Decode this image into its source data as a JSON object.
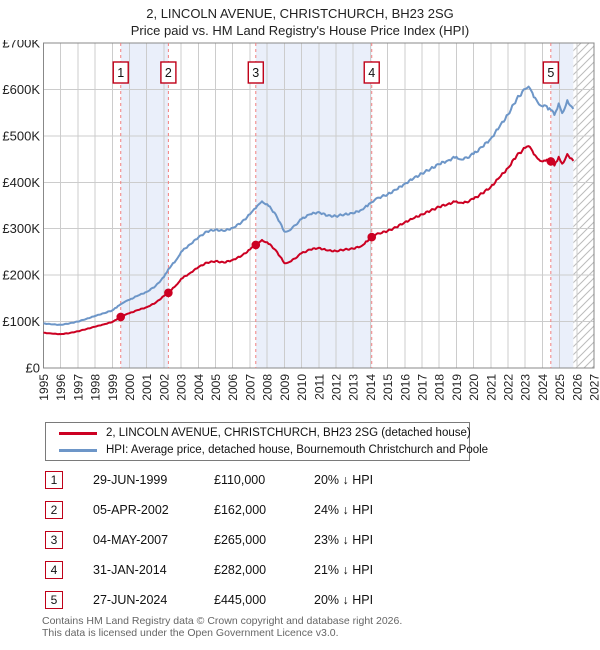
{
  "title": {
    "line1": "2, LINCOLN AVENUE, CHRISTCHURCH, BH23 2SG",
    "line2": "Price paid vs. HM Land Registry's House Price Index (HPI)"
  },
  "colors": {
    "price_line": "#cc0022",
    "hpi_line": "#6d96c8",
    "sale_dashed_line": "#f08080",
    "ownership_band": "#eaeffa",
    "gridline": "#cccccc",
    "frame": "#888888",
    "hatch": "#bbbbbb",
    "marker_box_border": "#c00018",
    "footer_text": "#666666"
  },
  "chart_data": {
    "type": "line",
    "title": "Price paid vs. HM Land Registry's House Price Index (HPI)",
    "xlabel": "",
    "ylabel": "",
    "x_range": [
      1995,
      2027
    ],
    "y_range": [
      0,
      700000
    ],
    "grid": true,
    "x_tick_labels": [
      "1995",
      "1996",
      "1997",
      "1998",
      "1999",
      "2000",
      "2001",
      "2002",
      "2003",
      "2004",
      "2005",
      "2006",
      "2007",
      "2008",
      "2009",
      "2010",
      "2011",
      "2012",
      "2013",
      "2014",
      "2015",
      "2016",
      "2017",
      "2018",
      "2019",
      "2020",
      "2021",
      "2022",
      "2023",
      "2024",
      "2025",
      "2026",
      "2027"
    ],
    "y_tick_labels": [
      "£0",
      "£100K",
      "£200K",
      "£300K",
      "£400K",
      "£500K",
      "£600K",
      "£700K"
    ],
    "y_tick_values": [
      0,
      100000,
      200000,
      300000,
      400000,
      500000,
      600000,
      700000
    ],
    "future_hatch_start": 2025.8,
    "ownership_bands": [
      [
        1999.49,
        2002.26
      ],
      [
        2007.34,
        2014.08
      ],
      [
        2024.49,
        2025.8
      ]
    ],
    "series": [
      {
        "name": "HPI: Average price, detached house, Bournemouth Christchurch and Poole",
        "color": "#6d96c8",
        "points": [
          [
            1995,
            96000
          ],
          [
            1995.5,
            94000
          ],
          [
            1996,
            93000
          ],
          [
            1996.5,
            96000
          ],
          [
            1997,
            100000
          ],
          [
            1997.5,
            106000
          ],
          [
            1998,
            112000
          ],
          [
            1998.5,
            118000
          ],
          [
            1999,
            124000
          ],
          [
            1999.49,
            137500
          ],
          [
            2000,
            147000
          ],
          [
            2000.5,
            156000
          ],
          [
            2001,
            164000
          ],
          [
            2001.5,
            176000
          ],
          [
            2002,
            196000
          ],
          [
            2002.26,
            213000
          ],
          [
            2002.7,
            232000
          ],
          [
            2003,
            250000
          ],
          [
            2003.5,
            266000
          ],
          [
            2004,
            281000
          ],
          [
            2004.5,
            294000
          ],
          [
            2005,
            298000
          ],
          [
            2005.5,
            295000
          ],
          [
            2006,
            302000
          ],
          [
            2006.5,
            313000
          ],
          [
            2007,
            331000
          ],
          [
            2007.34,
            344000
          ],
          [
            2007.7,
            359000
          ],
          [
            2008,
            353000
          ],
          [
            2008.5,
            331000
          ],
          [
            2009,
            294000
          ],
          [
            2009.4,
            299000
          ],
          [
            2010,
            321000
          ],
          [
            2010.5,
            331000
          ],
          [
            2011,
            336000
          ],
          [
            2011.5,
            328000
          ],
          [
            2012,
            327000
          ],
          [
            2012.5,
            331000
          ],
          [
            2013,
            333000
          ],
          [
            2013.5,
            341000
          ],
          [
            2014.08,
            357000
          ],
          [
            2014.5,
            367000
          ],
          [
            2015,
            374000
          ],
          [
            2015.5,
            384000
          ],
          [
            2016,
            397000
          ],
          [
            2016.5,
            408000
          ],
          [
            2017,
            419000
          ],
          [
            2017.5,
            429000
          ],
          [
            2018,
            439000
          ],
          [
            2018.5,
            447000
          ],
          [
            2019,
            455000
          ],
          [
            2019.4,
            449000
          ],
          [
            2020,
            461000
          ],
          [
            2020.5,
            476000
          ],
          [
            2021,
            494000
          ],
          [
            2021.5,
            519000
          ],
          [
            2022,
            546000
          ],
          [
            2022.5,
            579000
          ],
          [
            2023,
            601000
          ],
          [
            2023.2,
            606000
          ],
          [
            2023.5,
            583000
          ],
          [
            2023.8,
            568000
          ],
          [
            2024.1,
            566000
          ],
          [
            2024.49,
            556000
          ],
          [
            2024.7,
            545000
          ],
          [
            2024.95,
            570000
          ],
          [
            2025.15,
            549000
          ],
          [
            2025.45,
            577000
          ],
          [
            2025.6,
            566000
          ],
          [
            2025.8,
            558000
          ]
        ]
      },
      {
        "name": "2, LINCOLN AVENUE, CHRISTCHURCH, BH23 2SG (detached house)",
        "color": "#cc0022",
        "points": [
          [
            1995,
            76000
          ],
          [
            1995.5,
            74000
          ],
          [
            1996,
            73000
          ],
          [
            1996.5,
            75000
          ],
          [
            1997,
            79000
          ],
          [
            1997.5,
            84000
          ],
          [
            1998,
            89000
          ],
          [
            1998.5,
            94000
          ],
          [
            1999,
            99000
          ],
          [
            1999.49,
            110000
          ],
          [
            2000,
            118000
          ],
          [
            2000.5,
            125000
          ],
          [
            2001,
            131000
          ],
          [
            2001.5,
            140000
          ],
          [
            2002,
            155000
          ],
          [
            2002.26,
            162000
          ],
          [
            2002.7,
            178000
          ],
          [
            2003,
            192000
          ],
          [
            2003.5,
            204000
          ],
          [
            2004,
            217000
          ],
          [
            2004.5,
            227000
          ],
          [
            2005,
            230000
          ],
          [
            2005.5,
            227000
          ],
          [
            2006,
            233000
          ],
          [
            2006.5,
            241000
          ],
          [
            2007,
            255000
          ],
          [
            2007.34,
            265000
          ],
          [
            2007.7,
            276000
          ],
          [
            2008,
            271000
          ],
          [
            2008.5,
            254000
          ],
          [
            2009,
            226000
          ],
          [
            2009.4,
            230000
          ],
          [
            2010,
            247000
          ],
          [
            2010.5,
            255000
          ],
          [
            2011,
            259000
          ],
          [
            2011.5,
            253000
          ],
          [
            2012,
            252000
          ],
          [
            2012.5,
            255000
          ],
          [
            2013,
            257000
          ],
          [
            2013.5,
            263000
          ],
          [
            2014.08,
            282000
          ],
          [
            2014.5,
            290000
          ],
          [
            2015,
            295000
          ],
          [
            2015.5,
            303000
          ],
          [
            2016,
            314000
          ],
          [
            2016.5,
            322000
          ],
          [
            2017,
            331000
          ],
          [
            2017.5,
            339000
          ],
          [
            2018,
            347000
          ],
          [
            2018.5,
            353000
          ],
          [
            2019,
            359000
          ],
          [
            2019.4,
            355000
          ],
          [
            2020,
            364000
          ],
          [
            2020.5,
            376000
          ],
          [
            2021,
            390000
          ],
          [
            2021.5,
            410000
          ],
          [
            2022,
            431000
          ],
          [
            2022.5,
            457000
          ],
          [
            2023,
            474000
          ],
          [
            2023.2,
            478000
          ],
          [
            2023.5,
            460000
          ],
          [
            2023.8,
            449000
          ],
          [
            2024.1,
            447000
          ],
          [
            2024.49,
            445000
          ],
          [
            2024.7,
            436000
          ],
          [
            2024.95,
            455000
          ],
          [
            2025.15,
            440000
          ],
          [
            2025.45,
            461000
          ],
          [
            2025.6,
            452000
          ],
          [
            2025.8,
            446000
          ]
        ]
      }
    ],
    "sale_markers": [
      {
        "label": "1",
        "x": 1999.49,
        "y": 110000
      },
      {
        "label": "2",
        "x": 2002.26,
        "y": 162000
      },
      {
        "label": "3",
        "x": 2007.34,
        "y": 265000
      },
      {
        "label": "4",
        "x": 2014.08,
        "y": 282000
      },
      {
        "label": "5",
        "x": 2024.49,
        "y": 445000
      }
    ]
  },
  "legend": {
    "entries": [
      {
        "label": "2, LINCOLN AVENUE, CHRISTCHURCH, BH23 2SG (detached house)",
        "color": "#cc0022"
      },
      {
        "label": "HPI: Average price, detached house, Bournemouth Christchurch and Poole",
        "color": "#6d96c8"
      }
    ]
  },
  "sales_table": [
    {
      "marker": "1",
      "date": "29-JUN-1999",
      "price": "£110,000",
      "hpi_diff": "20% ↓ HPI"
    },
    {
      "marker": "2",
      "date": "05-APR-2002",
      "price": "£162,000",
      "hpi_diff": "24% ↓ HPI"
    },
    {
      "marker": "3",
      "date": "04-MAY-2007",
      "price": "£265,000",
      "hpi_diff": "23% ↓ HPI"
    },
    {
      "marker": "4",
      "date": "31-JAN-2014",
      "price": "£282,000",
      "hpi_diff": "21% ↓ HPI"
    },
    {
      "marker": "5",
      "date": "27-JUN-2024",
      "price": "£445,000",
      "hpi_diff": "20% ↓ HPI"
    }
  ],
  "footer": {
    "line1": "Contains HM Land Registry data © Crown copyright and database right 2026.",
    "line2": "This data is licensed under the Open Government Licence v3.0."
  }
}
